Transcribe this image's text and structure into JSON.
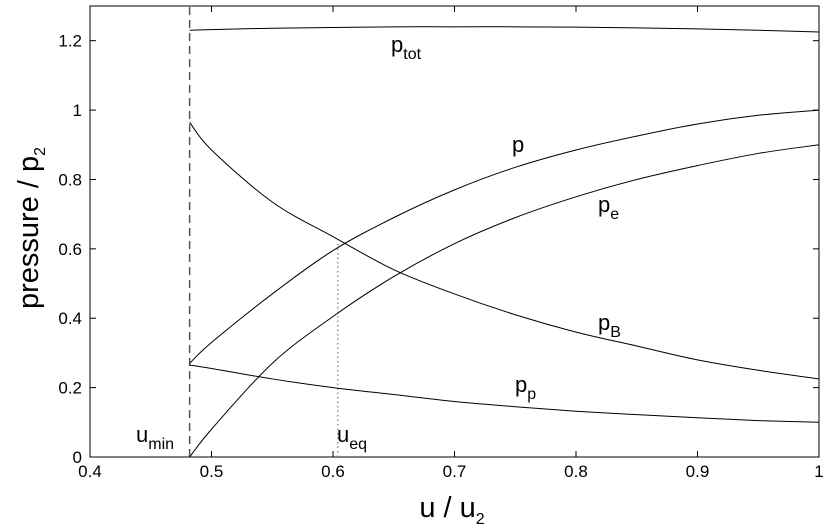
{
  "chart_data": {
    "type": "line",
    "title": "",
    "xlabel": {
      "main": "u / u",
      "sub": "2"
    },
    "ylabel": {
      "main": "pressure / p",
      "sub": "2"
    },
    "xlim": [
      0.4,
      1.0
    ],
    "ylim": [
      0,
      1.3
    ],
    "xticks": [
      "0.4",
      "0.5",
      "0.6",
      "0.7",
      "0.8",
      "0.9",
      "1"
    ],
    "yticks": [
      "0",
      "0.2",
      "0.4",
      "0.6",
      "0.8",
      "1",
      "1.2"
    ],
    "grid": false,
    "legend": "none",
    "x": [
      0.482,
      0.5,
      0.55,
      0.6,
      0.65,
      0.7,
      0.75,
      0.8,
      0.85,
      0.9,
      0.95,
      1.0
    ],
    "series": [
      {
        "name": "p_tot",
        "label_main": "p",
        "label_sub": "tot",
        "values": [
          1.23,
          1.232,
          1.236,
          1.238,
          1.24,
          1.24,
          1.24,
          1.239,
          1.237,
          1.234,
          1.23,
          1.225
        ]
      },
      {
        "name": "p",
        "label_main": "p",
        "label_sub": "",
        "values": [
          0.27,
          0.33,
          0.47,
          0.595,
          0.69,
          0.77,
          0.835,
          0.885,
          0.925,
          0.96,
          0.985,
          1.0
        ]
      },
      {
        "name": "p_e",
        "label_main": "p",
        "label_sub": "e",
        "values": [
          0.0,
          0.08,
          0.27,
          0.405,
          0.52,
          0.615,
          0.69,
          0.75,
          0.8,
          0.84,
          0.875,
          0.9
        ]
      },
      {
        "name": "p_B",
        "label_main": "p",
        "label_sub": "B",
        "values": [
          0.965,
          0.885,
          0.735,
          0.635,
          0.54,
          0.47,
          0.41,
          0.36,
          0.32,
          0.28,
          0.25,
          0.225
        ]
      },
      {
        "name": "p_p",
        "label_main": "p",
        "label_sub": "p",
        "values": [
          0.265,
          0.255,
          0.225,
          0.2,
          0.18,
          0.16,
          0.145,
          0.132,
          0.122,
          0.113,
          0.105,
          0.1
        ]
      }
    ],
    "annotations": [
      {
        "name": "u_min",
        "label_main": "u",
        "label_sub": "min",
        "x": 0.482,
        "style": "dashed",
        "y_top": 1.3
      },
      {
        "name": "u_eq",
        "label_main": "u",
        "label_sub": "eq",
        "x": 0.604,
        "style": "dotted",
        "y_top": 0.615
      }
    ]
  }
}
